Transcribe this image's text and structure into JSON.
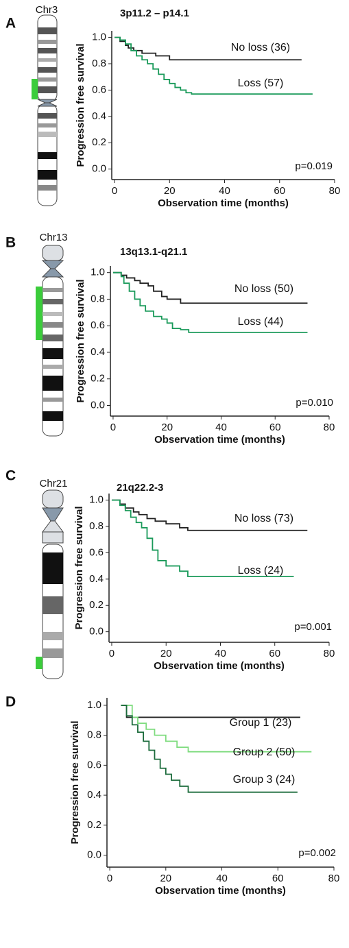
{
  "chart_data": [
    {
      "type": "step",
      "panel": "A",
      "chromosome": "Chr3",
      "title": "3p11.2 – p14.1",
      "annotation": "p=0.019",
      "ylabel": "Progression free survival",
      "xlabel": "Observation time (months)",
      "xlim": [
        -1,
        80
      ],
      "xticks": [
        0,
        20,
        40,
        60,
        80
      ],
      "ylim": [
        -0.08,
        1.05
      ],
      "yticks": [
        {
          "value": 0,
          "label": "0.0"
        },
        0.2,
        0.4,
        0.6,
        0.8,
        {
          "value": 1,
          "label": "1.0"
        }
      ],
      "series": [
        {
          "name": "No loss (36)",
          "color": "#222222",
          "x": [
            0,
            2,
            4,
            5,
            7,
            10,
            15,
            20,
            68
          ],
          "values": [
            1,
            0.97,
            0.94,
            0.92,
            0.9,
            0.88,
            0.86,
            0.83,
            0.83
          ]
        },
        {
          "name": "Loss (57)",
          "color": "#1a9a5a",
          "x": [
            0,
            2,
            4,
            6,
            8,
            10,
            12,
            14,
            16,
            18,
            20,
            22,
            24,
            26,
            28,
            72
          ],
          "values": [
            1,
            0.98,
            0.95,
            0.9,
            0.86,
            0.83,
            0.8,
            0.76,
            0.72,
            0.68,
            0.65,
            0.62,
            0.6,
            0.58,
            0.57,
            0.57
          ]
        }
      ]
    },
    {
      "type": "step",
      "panel": "B",
      "chromosome": "Chr13",
      "title": "13q13.1-q21.1",
      "annotation": "p=0.010",
      "ylabel": "Progression free survival",
      "xlabel": "Observation time (months)",
      "xlim": [
        -1,
        80
      ],
      "xticks": [
        0,
        20,
        40,
        60,
        80
      ],
      "ylim": [
        -0.08,
        1.05
      ],
      "yticks": [
        {
          "value": 0,
          "label": "0.0"
        },
        0.2,
        0.4,
        0.6,
        0.8,
        {
          "value": 1,
          "label": "1.0"
        }
      ],
      "series": [
        {
          "name": "No loss (50)",
          "color": "#222222",
          "x": [
            0,
            3,
            5,
            8,
            10,
            13,
            15,
            18,
            20,
            25,
            72
          ],
          "values": [
            1,
            0.98,
            0.96,
            0.94,
            0.92,
            0.9,
            0.86,
            0.82,
            0.8,
            0.77,
            0.77
          ]
        },
        {
          "name": "Loss (44)",
          "color": "#1a9a5a",
          "x": [
            0,
            3,
            4,
            6,
            8,
            10,
            12,
            15,
            18,
            20,
            22,
            25,
            28,
            72
          ],
          "values": [
            1,
            0.97,
            0.92,
            0.86,
            0.8,
            0.75,
            0.71,
            0.67,
            0.65,
            0.62,
            0.58,
            0.57,
            0.55,
            0.55
          ]
        }
      ]
    },
    {
      "type": "step",
      "panel": "C",
      "chromosome": "Chr21",
      "title": "21q22.2-3",
      "annotation": "p=0.001",
      "ylabel": "Progression free survival",
      "xlabel": "Observation time (months)",
      "xlim": [
        -1,
        80
      ],
      "xticks": [
        0,
        20,
        40,
        60,
        80
      ],
      "ylim": [
        -0.08,
        1.05
      ],
      "yticks": [
        {
          "value": 0,
          "label": "0.0"
        },
        0.2,
        0.4,
        0.6,
        0.8,
        {
          "value": 1,
          "label": "1.0"
        }
      ],
      "series": [
        {
          "name": "No loss (73)",
          "color": "#222222",
          "x": [
            0,
            3,
            5,
            8,
            10,
            13,
            16,
            20,
            25,
            28,
            72
          ],
          "values": [
            1,
            0.97,
            0.94,
            0.91,
            0.89,
            0.86,
            0.84,
            0.82,
            0.79,
            0.77,
            0.77
          ]
        },
        {
          "name": "Loss (24)",
          "color": "#1a9a5a",
          "x": [
            0,
            3,
            5,
            7,
            9,
            11,
            13,
            15,
            17,
            20,
            25,
            28,
            67
          ],
          "values": [
            1,
            0.96,
            0.92,
            0.87,
            0.83,
            0.79,
            0.71,
            0.62,
            0.54,
            0.5,
            0.46,
            0.42,
            0.42
          ]
        }
      ]
    },
    {
      "type": "step",
      "panel": "D",
      "annotation": "p=0.002",
      "ylabel": "Progression free survival",
      "xlabel": "Observation time (months)",
      "xlim": [
        -1,
        80
      ],
      "xticks": [
        0,
        20,
        40,
        60,
        80
      ],
      "ylim": [
        -0.08,
        1.05
      ],
      "yticks": [
        {
          "value": 0,
          "label": "0.0"
        },
        0.2,
        0.4,
        0.6,
        0.8,
        {
          "value": 1,
          "label": "1.0"
        }
      ],
      "series": [
        {
          "name": "Group 1 (23)",
          "color": "#222222",
          "x": [
            4,
            6,
            68
          ],
          "values": [
            1,
            0.92,
            0.92
          ]
        },
        {
          "name": "Group 2 (50)",
          "color": "#7fdc7f",
          "x": [
            4,
            8,
            10,
            13,
            16,
            20,
            24,
            28,
            72
          ],
          "values": [
            1,
            0.92,
            0.88,
            0.84,
            0.8,
            0.76,
            0.72,
            0.69,
            0.69
          ]
        },
        {
          "name": "Group 3 (24)",
          "color": "#1b6b3b",
          "x": [
            4,
            6,
            8,
            10,
            12,
            14,
            16,
            18,
            20,
            22,
            25,
            28,
            67
          ],
          "values": [
            1,
            0.93,
            0.87,
            0.82,
            0.76,
            0.7,
            0.64,
            0.58,
            0.54,
            0.5,
            0.46,
            0.42,
            0.42
          ]
        }
      ]
    }
  ]
}
